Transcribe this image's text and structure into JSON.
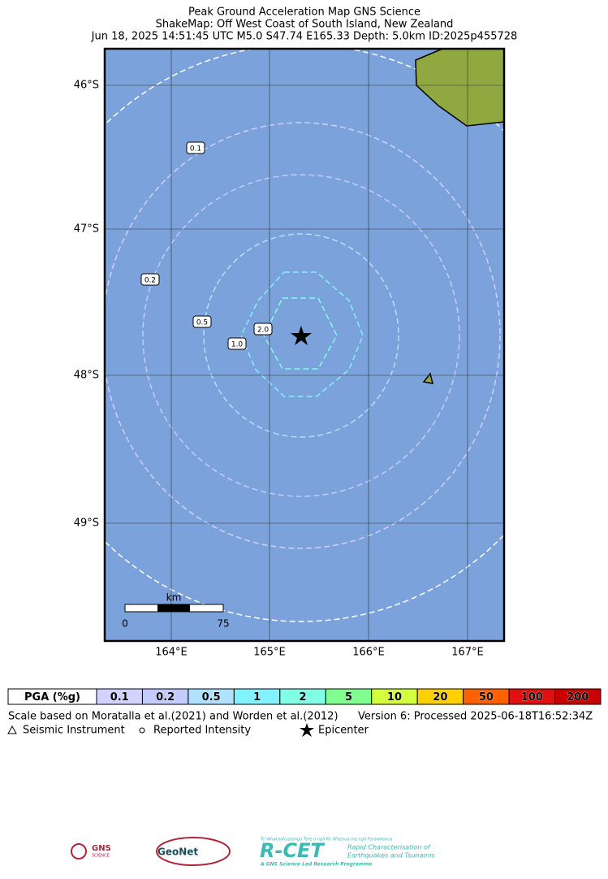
{
  "header": {
    "title": "Peak Ground Acceleration Map GNS Science",
    "subtitle": "ShakeMap: Off West Coast of South Island, New Zealand",
    "event": "Jun 18, 2025 14:51:45 UTC M5.0 S47.74 E165.33 Depth: 5.0km ID:2025p455728"
  },
  "map": {
    "lat_labels": [
      "46°S",
      "47°S",
      "48°S",
      "49°S"
    ],
    "lon_labels": [
      "164°E",
      "165°E",
      "166°E",
      "167°E"
    ],
    "contour_labels": [
      "0.1",
      "0.2",
      "0.5",
      "1.0",
      "2.0"
    ],
    "scale_bar": {
      "unit": "km",
      "start": "0",
      "end": "75"
    }
  },
  "pga_legend": {
    "header": "PGA (%g)",
    "levels": [
      {
        "label": "0.1",
        "color": "#d2d2ff"
      },
      {
        "label": "0.2",
        "color": "#c4ccff"
      },
      {
        "label": "0.5",
        "color": "#b0e2ff"
      },
      {
        "label": "1",
        "color": "#82f2ff"
      },
      {
        "label": "2",
        "color": "#80ffe6"
      },
      {
        "label": "5",
        "color": "#80ff90"
      },
      {
        "label": "10",
        "color": "#d2ff40"
      },
      {
        "label": "20",
        "color": "#ffd000"
      },
      {
        "label": "50",
        "color": "#ff6000"
      },
      {
        "label": "100",
        "color": "#e01010"
      },
      {
        "label": "200",
        "color": "#c80000"
      }
    ]
  },
  "footnote": {
    "scale_note": "Scale based on Moratalla et al.(2021) and Worden et al.(2012)",
    "version": "Version 6: Processed 2025-06-18T16:52:34Z"
  },
  "symbols": [
    "Seismic Instrument",
    "Reported Intensity",
    "Epicenter"
  ],
  "logos": {
    "gns": "GNS",
    "gns_sub": "SCIENCE",
    "geonet": "GeoNet",
    "rcet_top": "Te Whakaahuatanga Tere o ngā Rū Whenua me ngā Parawhenua",
    "rcet": "R-CET",
    "rcet_desc1": "Rapid Characterisation of",
    "rcet_desc2": "Earthquakes and Tsunamis",
    "rcet_bottom": "A GNS Science Led Research Programme"
  }
}
